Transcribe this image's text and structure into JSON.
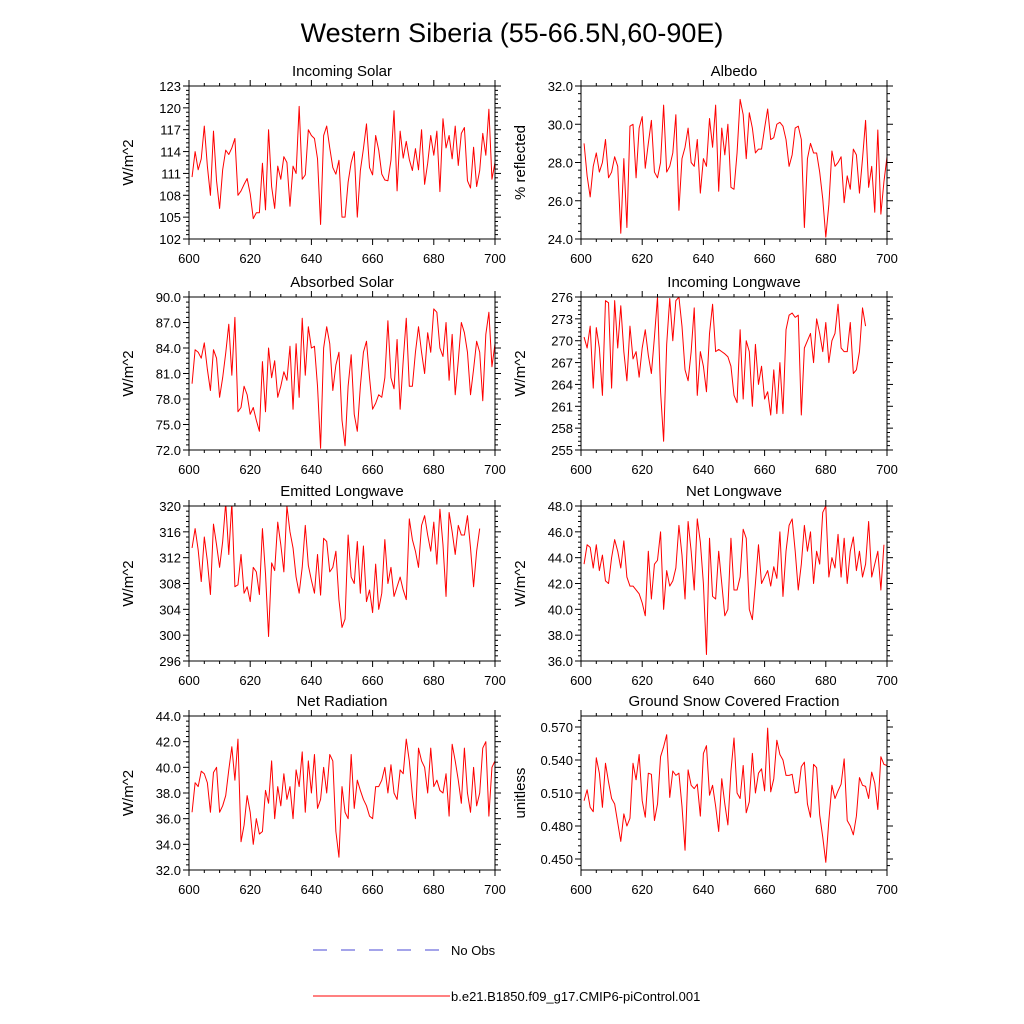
{
  "page": {
    "title": "Western Siberia (55-66.5N,60-90E)"
  },
  "legend": [
    {
      "label": "No Obs",
      "color": "#4a4ad6",
      "dash": true
    },
    {
      "label": "b.e21.B1850.f09_g17.CMIP6-piControl.001",
      "color": "#ff0000",
      "dash": false
    }
  ],
  "chart_data": [
    {
      "type": "line",
      "title": "Incoming Solar",
      "ylabel": "W/m^2",
      "xlim": [
        600,
        700
      ],
      "ylim": [
        102,
        123
      ],
      "xticks": [
        600,
        620,
        640,
        660,
        680,
        700
      ],
      "yticks": [
        "102",
        "105",
        "108",
        "111",
        "114",
        "117",
        "120",
        "123"
      ],
      "series": [
        {
          "color": "#ff0000",
          "x_start": 601,
          "x_step": 1,
          "values": [
            110.5,
            114.0,
            111.5,
            113.0,
            117.5,
            112.0,
            108.0,
            116.8,
            110.0,
            106.2,
            111.5,
            114.2,
            113.6,
            114.5,
            115.8,
            108.0,
            108.6,
            109.5,
            110.3,
            108.2,
            104.8,
            105.6,
            105.6,
            112.4,
            106.0,
            117.0,
            109.2,
            106.2,
            112.0,
            110.2,
            113.3,
            112.5,
            106.5,
            112.0,
            111.0,
            120.2,
            110.2,
            110.8,
            117.0,
            116.2,
            115.8,
            113.0,
            104.0,
            116.2,
            117.5,
            114.5,
            111.8,
            110.9,
            112.8,
            105.0,
            105.0,
            109.8,
            112.5,
            114.0,
            105.0,
            111.4,
            114.4,
            117.8,
            111.8,
            110.8,
            116.2,
            114.2,
            110.9,
            110.1,
            110.0,
            112.8,
            119.6,
            108.6,
            116.8,
            113.1,
            115.4,
            112.9,
            111.4,
            114.4,
            111.5,
            117.0,
            109.5,
            112.4,
            116.2,
            113.5,
            116.8,
            108.5,
            118.5,
            114.5,
            116.2,
            113.0,
            117.5,
            112.1,
            116.5,
            117.3,
            110.0,
            109.0,
            114.6,
            109.2,
            111.4,
            116.5,
            113.5,
            119.8,
            110.2,
            112.5,
            111.5,
            114.5
          ]
        }
      ]
    },
    {
      "type": "line",
      "title": "Albedo",
      "ylabel": "% reflected",
      "xlim": [
        600,
        700
      ],
      "ylim": [
        24.0,
        32.0
      ],
      "xticks": [
        600,
        620,
        640,
        660,
        680,
        700
      ],
      "yticks": [
        "24.0",
        "26.0",
        "28.0",
        "30.0",
        "32.0"
      ],
      "series": [
        {
          "color": "#ff0000",
          "x_start": 601,
          "x_step": 1,
          "values": [
            29.0,
            27.3,
            26.2,
            27.8,
            28.5,
            27.5,
            28.0,
            29.2,
            27.2,
            27.5,
            28.3,
            27.8,
            24.3,
            28.2,
            24.6,
            29.9,
            30.0,
            27.2,
            29.8,
            30.4,
            27.7,
            29.0,
            30.2,
            27.5,
            27.2,
            28.0,
            31.0,
            27.5,
            27.8,
            28.5,
            30.5,
            25.5,
            28.2,
            28.8,
            29.8,
            28.0,
            27.8,
            29.2,
            26.4,
            28.2,
            27.8,
            30.3,
            28.8,
            31.0,
            26.5,
            29.8,
            28.4,
            30.0,
            26.7,
            26.6,
            28.5,
            31.3,
            30.5,
            28.2,
            30.6,
            29.8,
            28.5,
            28.7,
            28.7,
            29.8,
            30.8,
            29.2,
            29.3,
            30.0,
            30.1,
            29.9,
            29.2,
            27.8,
            28.4,
            29.8,
            29.9,
            29.2,
            24.6,
            28.2,
            29.0,
            28.5,
            28.5,
            27.5,
            26.1,
            24.1,
            25.8,
            28.6,
            27.8,
            28.0,
            28.3,
            25.9,
            27.3,
            26.6,
            28.7,
            28.4,
            26.4,
            28.2,
            30.2,
            26.7,
            27.8,
            25.4,
            29.7,
            25.3,
            27.0,
            28.3
          ]
        }
      ]
    },
    {
      "type": "line",
      "title": "Absorbed Solar",
      "ylabel": "W/m^2",
      "xlim": [
        600,
        700
      ],
      "ylim": [
        72.0,
        90.0
      ],
      "xticks": [
        600,
        620,
        640,
        660,
        680,
        700
      ],
      "yticks": [
        "72.0",
        "75.0",
        "78.0",
        "81.0",
        "84.0",
        "87.0",
        "90.0"
      ],
      "series": [
        {
          "color": "#ff0000",
          "x_start": 601,
          "x_step": 1,
          "values": [
            79.8,
            83.8,
            83.5,
            82.8,
            84.6,
            81.5,
            79.0,
            83.8,
            82.8,
            78.2,
            80.5,
            83.4,
            86.8,
            80.8,
            87.6,
            76.5,
            77.0,
            79.5,
            78.5,
            76.2,
            77.0,
            75.5,
            74.2,
            82.4,
            76.5,
            84.0,
            80.5,
            82.5,
            78.2,
            79.5,
            81.2,
            80.2,
            84.2,
            76.8,
            84.5,
            78.2,
            87.5,
            80.8,
            86.5,
            84.0,
            84.2,
            79.5,
            72.2,
            84.0,
            86.5,
            84.5,
            79.0,
            82.0,
            83.5,
            75.5,
            72.5,
            79.5,
            83.2,
            76.2,
            74.2,
            79.5,
            83.5,
            84.8,
            80.5,
            76.8,
            77.5,
            78.5,
            78.2,
            80.5,
            87.2,
            80.5,
            79.2,
            85.0,
            76.8,
            82.5,
            87.5,
            79.5,
            79.5,
            83.5,
            86.5,
            83.5,
            81.0,
            85.8,
            83.5,
            88.6,
            88.2,
            84.0,
            83.0,
            87.0,
            80.2,
            85.6,
            78.5,
            82.5,
            87.0,
            85.8,
            83.5,
            78.5,
            81.5,
            84.8,
            83.5,
            77.8,
            85.6,
            88.2,
            81.8,
            84.5
          ]
        }
      ]
    },
    {
      "type": "line",
      "title": "Incoming Longwave",
      "ylabel": "W/m^2",
      "xlim": [
        600,
        700
      ],
      "ylim": [
        255,
        276
      ],
      "xticks": [
        600,
        620,
        640,
        660,
        680,
        700
      ],
      "yticks": [
        "255",
        "258",
        "261",
        "264",
        "267",
        "270",
        "273",
        "276"
      ],
      "series": [
        {
          "color": "#ff0000",
          "x_start": 601,
          "x_step": 1,
          "values": [
            270.5,
            269.0,
            272.0,
            263.5,
            271.8,
            269.0,
            262.5,
            275.5,
            275.2,
            263.5,
            275.5,
            269.0,
            274.8,
            268.5,
            264.5,
            272.0,
            267.5,
            268.5,
            265.0,
            269.0,
            271.5,
            268.0,
            265.5,
            270.5,
            276.0,
            263.0,
            256.2,
            269.5,
            275.8,
            270.0,
            275.5,
            276.0,
            272.0,
            266.0,
            264.5,
            268.5,
            274.5,
            262.5,
            268.5,
            266.5,
            263.0,
            271.0,
            275.0,
            268.5,
            268.8,
            268.5,
            268.2,
            267.8,
            266.5,
            262.5,
            261.5,
            271.5,
            262.0,
            270.0,
            268.5,
            261.0,
            269.5,
            264.0,
            266.5,
            262.0,
            263.0,
            259.8,
            266.0,
            260.0,
            267.0,
            260.0,
            271.5,
            273.5,
            273.8,
            273.2,
            273.5,
            259.8,
            269.0,
            270.0,
            271.0,
            267.0,
            273.0,
            271.0,
            268.5,
            272.5,
            267.0,
            270.0,
            271.0,
            275.0,
            269.0,
            268.5,
            268.5,
            272.5,
            265.5,
            266.0,
            268.5,
            274.5,
            272.0
          ]
        }
      ]
    },
    {
      "type": "line",
      "title": "Emitted Longwave",
      "ylabel": "W/m^2",
      "xlim": [
        600,
        700
      ],
      "ylim": [
        296,
        320
      ],
      "xticks": [
        600,
        620,
        640,
        660,
        680,
        700
      ],
      "yticks": [
        "296",
        "300",
        "304",
        "308",
        "312",
        "316",
        "320"
      ],
      "series": [
        {
          "color": "#ff0000",
          "x_start": 601,
          "x_step": 1,
          "values": [
            313.5,
            316.5,
            313.2,
            308.3,
            315.2,
            311.5,
            306.3,
            317.2,
            314.0,
            310.5,
            314.5,
            320.5,
            312.5,
            320.5,
            307.5,
            307.8,
            312.5,
            306.5,
            307.5,
            305.2,
            310.5,
            309.8,
            306.3,
            316.5,
            309.5,
            299.8,
            311.2,
            310.0,
            317.5,
            314.0,
            309.8,
            320.0,
            316.0,
            313.5,
            309.0,
            306.5,
            310.5,
            317.0,
            310.8,
            308.5,
            306.5,
            312.5,
            306.2,
            315.0,
            314.5,
            309.8,
            310.5,
            313.0,
            305.5,
            301.2,
            302.5,
            315.5,
            309.0,
            308.0,
            314.5,
            306.5,
            313.8,
            305.2,
            307.0,
            303.5,
            311.0,
            304.0,
            306.5,
            314.8,
            308.0,
            310.5,
            306.0,
            307.5,
            309.0,
            307.0,
            305.5,
            318.0,
            314.8,
            313.0,
            310.5,
            317.0,
            318.5,
            315.5,
            313.0,
            317.5,
            311.0,
            319.5,
            314.0,
            306.0,
            319.0,
            316.0,
            312.5,
            317.0,
            315.5,
            315.5,
            318.5,
            313.5,
            307.5,
            313.0,
            316.5
          ]
        }
      ]
    },
    {
      "type": "line",
      "title": "Net Longwave",
      "ylabel": "W/m^2",
      "xlim": [
        600,
        700
      ],
      "ylim": [
        36.0,
        48.0
      ],
      "xticks": [
        600,
        620,
        640,
        660,
        680,
        700
      ],
      "yticks": [
        "36.0",
        "38.0",
        "40.0",
        "42.0",
        "44.0",
        "46.0",
        "48.0"
      ],
      "series": [
        {
          "color": "#ff0000",
          "x_start": 601,
          "x_step": 1,
          "values": [
            43.5,
            45.0,
            44.8,
            43.2,
            45.0,
            43.0,
            44.2,
            42.2,
            42.0,
            44.0,
            45.4,
            44.5,
            43.2,
            45.3,
            42.5,
            41.8,
            41.8,
            41.5,
            41.2,
            40.5,
            39.5,
            44.5,
            40.8,
            43.5,
            43.8,
            46.0,
            40.0,
            43.0,
            41.8,
            42.2,
            43.2,
            46.5,
            44.2,
            40.8,
            46.8,
            44.5,
            41.5,
            47.0,
            45.2,
            42.0,
            36.5,
            45.5,
            41.0,
            40.8,
            44.5,
            42.0,
            39.5,
            40.0,
            45.5,
            41.5,
            41.5,
            42.5,
            46.2,
            45.5,
            40.0,
            39.2,
            42.0,
            45.0,
            42.0,
            42.5,
            43.0,
            41.8,
            43.3,
            42.4,
            46.0,
            41.0,
            44.5,
            46.5,
            47.0,
            44.5,
            41.5,
            43.5,
            46.5,
            44.5,
            46.0,
            42.0,
            44.5,
            43.5,
            47.5,
            48.0,
            42.5,
            44.0,
            43.2,
            45.8,
            42.5,
            45.5,
            42.0,
            44.5,
            45.6,
            43.0,
            44.5,
            42.5,
            43.5,
            46.8,
            42.5,
            43.5,
            44.5,
            41.5,
            45.0
          ]
        }
      ]
    },
    {
      "type": "line",
      "title": "Net Radiation",
      "ylabel": "W/m^2",
      "xlim": [
        600,
        700
      ],
      "ylim": [
        32.0,
        44.0
      ],
      "xticks": [
        600,
        620,
        640,
        660,
        680,
        700
      ],
      "yticks": [
        "32.0",
        "34.0",
        "36.0",
        "38.0",
        "40.0",
        "42.0",
        "44.0"
      ],
      "series": [
        {
          "color": "#ff0000",
          "x_start": 601,
          "x_step": 1,
          "values": [
            36.5,
            38.8,
            38.5,
            39.7,
            39.5,
            38.8,
            36.5,
            39.6,
            40.0,
            36.5,
            37.0,
            37.8,
            39.8,
            41.6,
            39.0,
            42.2,
            34.2,
            35.5,
            37.8,
            36.5,
            34.0,
            36.0,
            34.8,
            35.0,
            38.2,
            37.2,
            40.5,
            36.0,
            38.5,
            37.0,
            39.5,
            37.5,
            38.5,
            36.0,
            39.8,
            38.5,
            41.2,
            36.5,
            40.5,
            38.0,
            41.0,
            36.8,
            37.5,
            40.0,
            38.0,
            41.0,
            40.5,
            35.0,
            33.0,
            38.5,
            36.5,
            36.0,
            41.0,
            36.8,
            39.0,
            38.2,
            37.5,
            37.0,
            36.2,
            36.0,
            38.5,
            38.5,
            39.0,
            40.0,
            38.0,
            40.2,
            38.0,
            37.5,
            39.8,
            39.5,
            42.2,
            40.5,
            37.8,
            36.0,
            41.5,
            40.5,
            40.0,
            38.0,
            41.5,
            38.5,
            39.0,
            38.2,
            38.0,
            39.5,
            36.2,
            41.8,
            40.5,
            39.0,
            37.2,
            41.5,
            38.0,
            36.5,
            40.0,
            37.0,
            38.0,
            41.5,
            42.0,
            36.2,
            40.0,
            40.5
          ]
        }
      ]
    },
    {
      "type": "line",
      "title": "Ground Snow Covered Fraction",
      "ylabel": "unitless",
      "xlim": [
        600,
        700
      ],
      "ylim": [
        0.44,
        0.58
      ],
      "xticks": [
        600,
        620,
        640,
        660,
        680,
        700
      ],
      "yticks": [
        "0.450",
        "0.480",
        "0.510",
        "0.540",
        "0.570"
      ],
      "series": [
        {
          "color": "#ff0000",
          "x_start": 601,
          "x_step": 1,
          "values": [
            0.503,
            0.513,
            0.497,
            0.493,
            0.542,
            0.528,
            0.497,
            0.537,
            0.52,
            0.505,
            0.5,
            0.483,
            0.466,
            0.491,
            0.48,
            0.487,
            0.537,
            0.522,
            0.545,
            0.503,
            0.488,
            0.528,
            0.527,
            0.485,
            0.5,
            0.543,
            0.552,
            0.563,
            0.506,
            0.53,
            0.526,
            0.528,
            0.498,
            0.458,
            0.531,
            0.517,
            0.514,
            0.518,
            0.489,
            0.546,
            0.553,
            0.508,
            0.517,
            0.498,
            0.475,
            0.523,
            0.5,
            0.481,
            0.53,
            0.56,
            0.51,
            0.505,
            0.535,
            0.492,
            0.502,
            0.546,
            0.51,
            0.528,
            0.532,
            0.512,
            0.569,
            0.511,
            0.523,
            0.558,
            0.545,
            0.54,
            0.526,
            0.526,
            0.527,
            0.51,
            0.511,
            0.534,
            0.538,
            0.5,
            0.488,
            0.536,
            0.533,
            0.49,
            0.47,
            0.447,
            0.485,
            0.517,
            0.505,
            0.512,
            0.518,
            0.541,
            0.485,
            0.48,
            0.472,
            0.489,
            0.524,
            0.517,
            0.516,
            0.505,
            0.529,
            0.519,
            0.495,
            0.543,
            0.536,
            0.535
          ]
        }
      ]
    }
  ]
}
